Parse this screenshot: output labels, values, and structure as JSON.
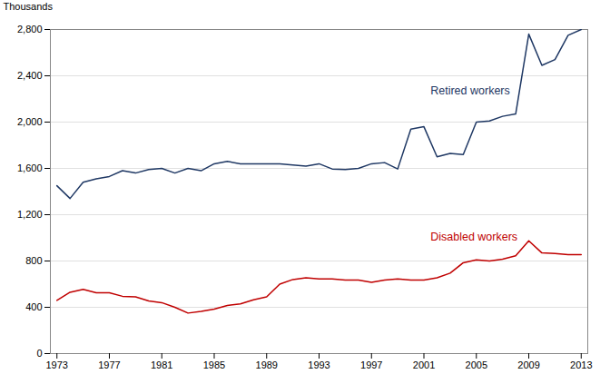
{
  "chart_data": {
    "type": "line",
    "y_label": "Thousands",
    "x": [
      1973,
      1974,
      1975,
      1976,
      1977,
      1978,
      1979,
      1980,
      1981,
      1982,
      1983,
      1984,
      1985,
      1986,
      1987,
      1988,
      1989,
      1990,
      1991,
      1992,
      1993,
      1994,
      1995,
      1996,
      1997,
      1998,
      1999,
      2000,
      2001,
      2002,
      2003,
      2004,
      2005,
      2006,
      2007,
      2008,
      2009,
      2010,
      2011,
      2012,
      2013
    ],
    "series": [
      {
        "color": "#1f3864",
        "values": [
          1450,
          1340,
          1480,
          1510,
          1530,
          1580,
          1560,
          1590,
          1600,
          1560,
          1600,
          1580,
          1640,
          1660,
          1640,
          1640,
          1640,
          1640,
          1630,
          1620,
          1640,
          1595,
          1590,
          1600,
          1640,
          1650,
          1595,
          1940,
          1960,
          1700,
          1730,
          1720,
          2000,
          2010,
          2050,
          2070,
          2760,
          2490,
          2540,
          2750,
          2800
        ]
      },
      {
        "color": "#c00000",
        "values": [
          460,
          530,
          555,
          525,
          525,
          495,
          490,
          455,
          440,
          400,
          350,
          365,
          385,
          415,
          430,
          465,
          490,
          600,
          640,
          655,
          645,
          645,
          635,
          635,
          615,
          635,
          645,
          635,
          635,
          655,
          695,
          785,
          810,
          800,
          815,
          845,
          975,
          870,
          865,
          855,
          855
        ]
      }
    ],
    "annotations": [
      {
        "text": "Retired workers",
        "x": 2001.5,
        "y": 2270,
        "color": "#1f3864"
      },
      {
        "text": "Disabled workers",
        "x": 2001.5,
        "y": 1010,
        "color": "#c00000"
      }
    ],
    "xlim": [
      1972.5,
      2013.5
    ],
    "xticks": [
      1973,
      1977,
      1981,
      1985,
      1989,
      1993,
      1997,
      2001,
      2005,
      2009,
      2013
    ],
    "ylim": [
      0,
      2800
    ],
    "yticks": [
      0,
      400,
      800,
      {
        "value": 1200,
        "label": "1,200"
      },
      {
        "value": 1600,
        "label": "1,600"
      },
      {
        "value": 2000,
        "label": "2,000"
      },
      {
        "value": 2400,
        "label": "2,400"
      },
      {
        "value": 2800,
        "label": "2,800"
      }
    ],
    "grid": true
  }
}
